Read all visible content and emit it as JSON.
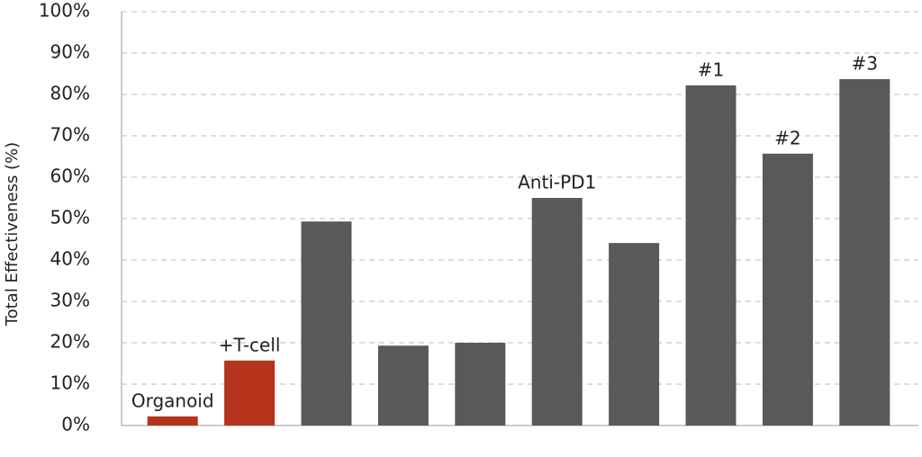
{
  "chart_data": {
    "type": "bar",
    "y_label": "Total Effectiveness (%)",
    "categories": [
      "Organoid",
      "+T-cell",
      null,
      null,
      null,
      "Anti-PD1",
      null,
      "#1",
      "#2",
      "#3"
    ],
    "values": [
      2.2,
      15.7,
      49.3,
      19.3,
      20.0,
      55.0,
      44.1,
      82.2,
      65.7,
      83.7
    ],
    "colors": [
      "#b5331a",
      "#b5331a",
      "#595959",
      "#595959",
      "#595959",
      "#595959",
      "#595959",
      "#595959",
      "#595959",
      "#595959"
    ],
    "ylim": [
      0,
      100
    ],
    "yticks": [
      {
        "value": 0,
        "label": "0%"
      },
      {
        "value": 10,
        "label": "10%"
      },
      {
        "value": 20,
        "label": "20%"
      },
      {
        "value": 30,
        "label": "30%"
      },
      {
        "value": 40,
        "label": "40%"
      },
      {
        "value": 50,
        "label": "50%"
      },
      {
        "value": 60,
        "label": "60%"
      },
      {
        "value": 70,
        "label": "70%"
      },
      {
        "value": 80,
        "label": "80%"
      },
      {
        "value": 90,
        "label": "90%"
      },
      {
        "value": 100,
        "label": "100%"
      }
    ],
    "grid": true
  }
}
